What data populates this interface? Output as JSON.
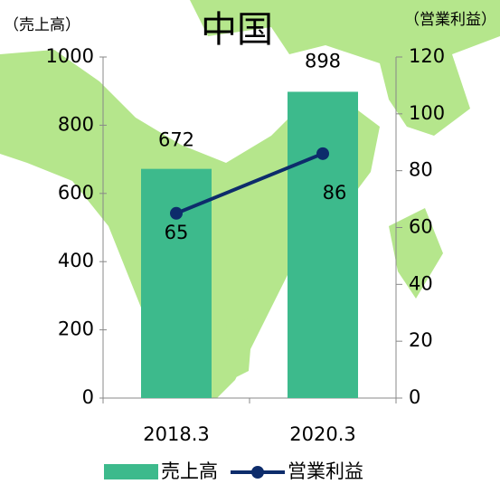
{
  "chart_data": {
    "type": "bar",
    "title": "中国",
    "ylabel": "（売上高）",
    "y2label": "（営業利益）",
    "categories": [
      "2018.3",
      "2020.3"
    ],
    "series": [
      {
        "name": "売上高",
        "type": "bar",
        "color": "#3dba8c",
        "values": [
          672,
          898
        ]
      },
      {
        "name": "営業利益",
        "type": "line",
        "axis": "y2",
        "color": "#0d2c6b",
        "values": [
          65,
          86
        ]
      }
    ],
    "ylim": [
      0,
      1000
    ],
    "yticks": [
      0,
      200,
      400,
      600,
      800,
      1000
    ],
    "y2lim": [
      0,
      120
    ],
    "y2ticks": [
      0,
      20,
      40,
      60,
      80,
      100,
      120
    ],
    "legend": "bottom"
  }
}
